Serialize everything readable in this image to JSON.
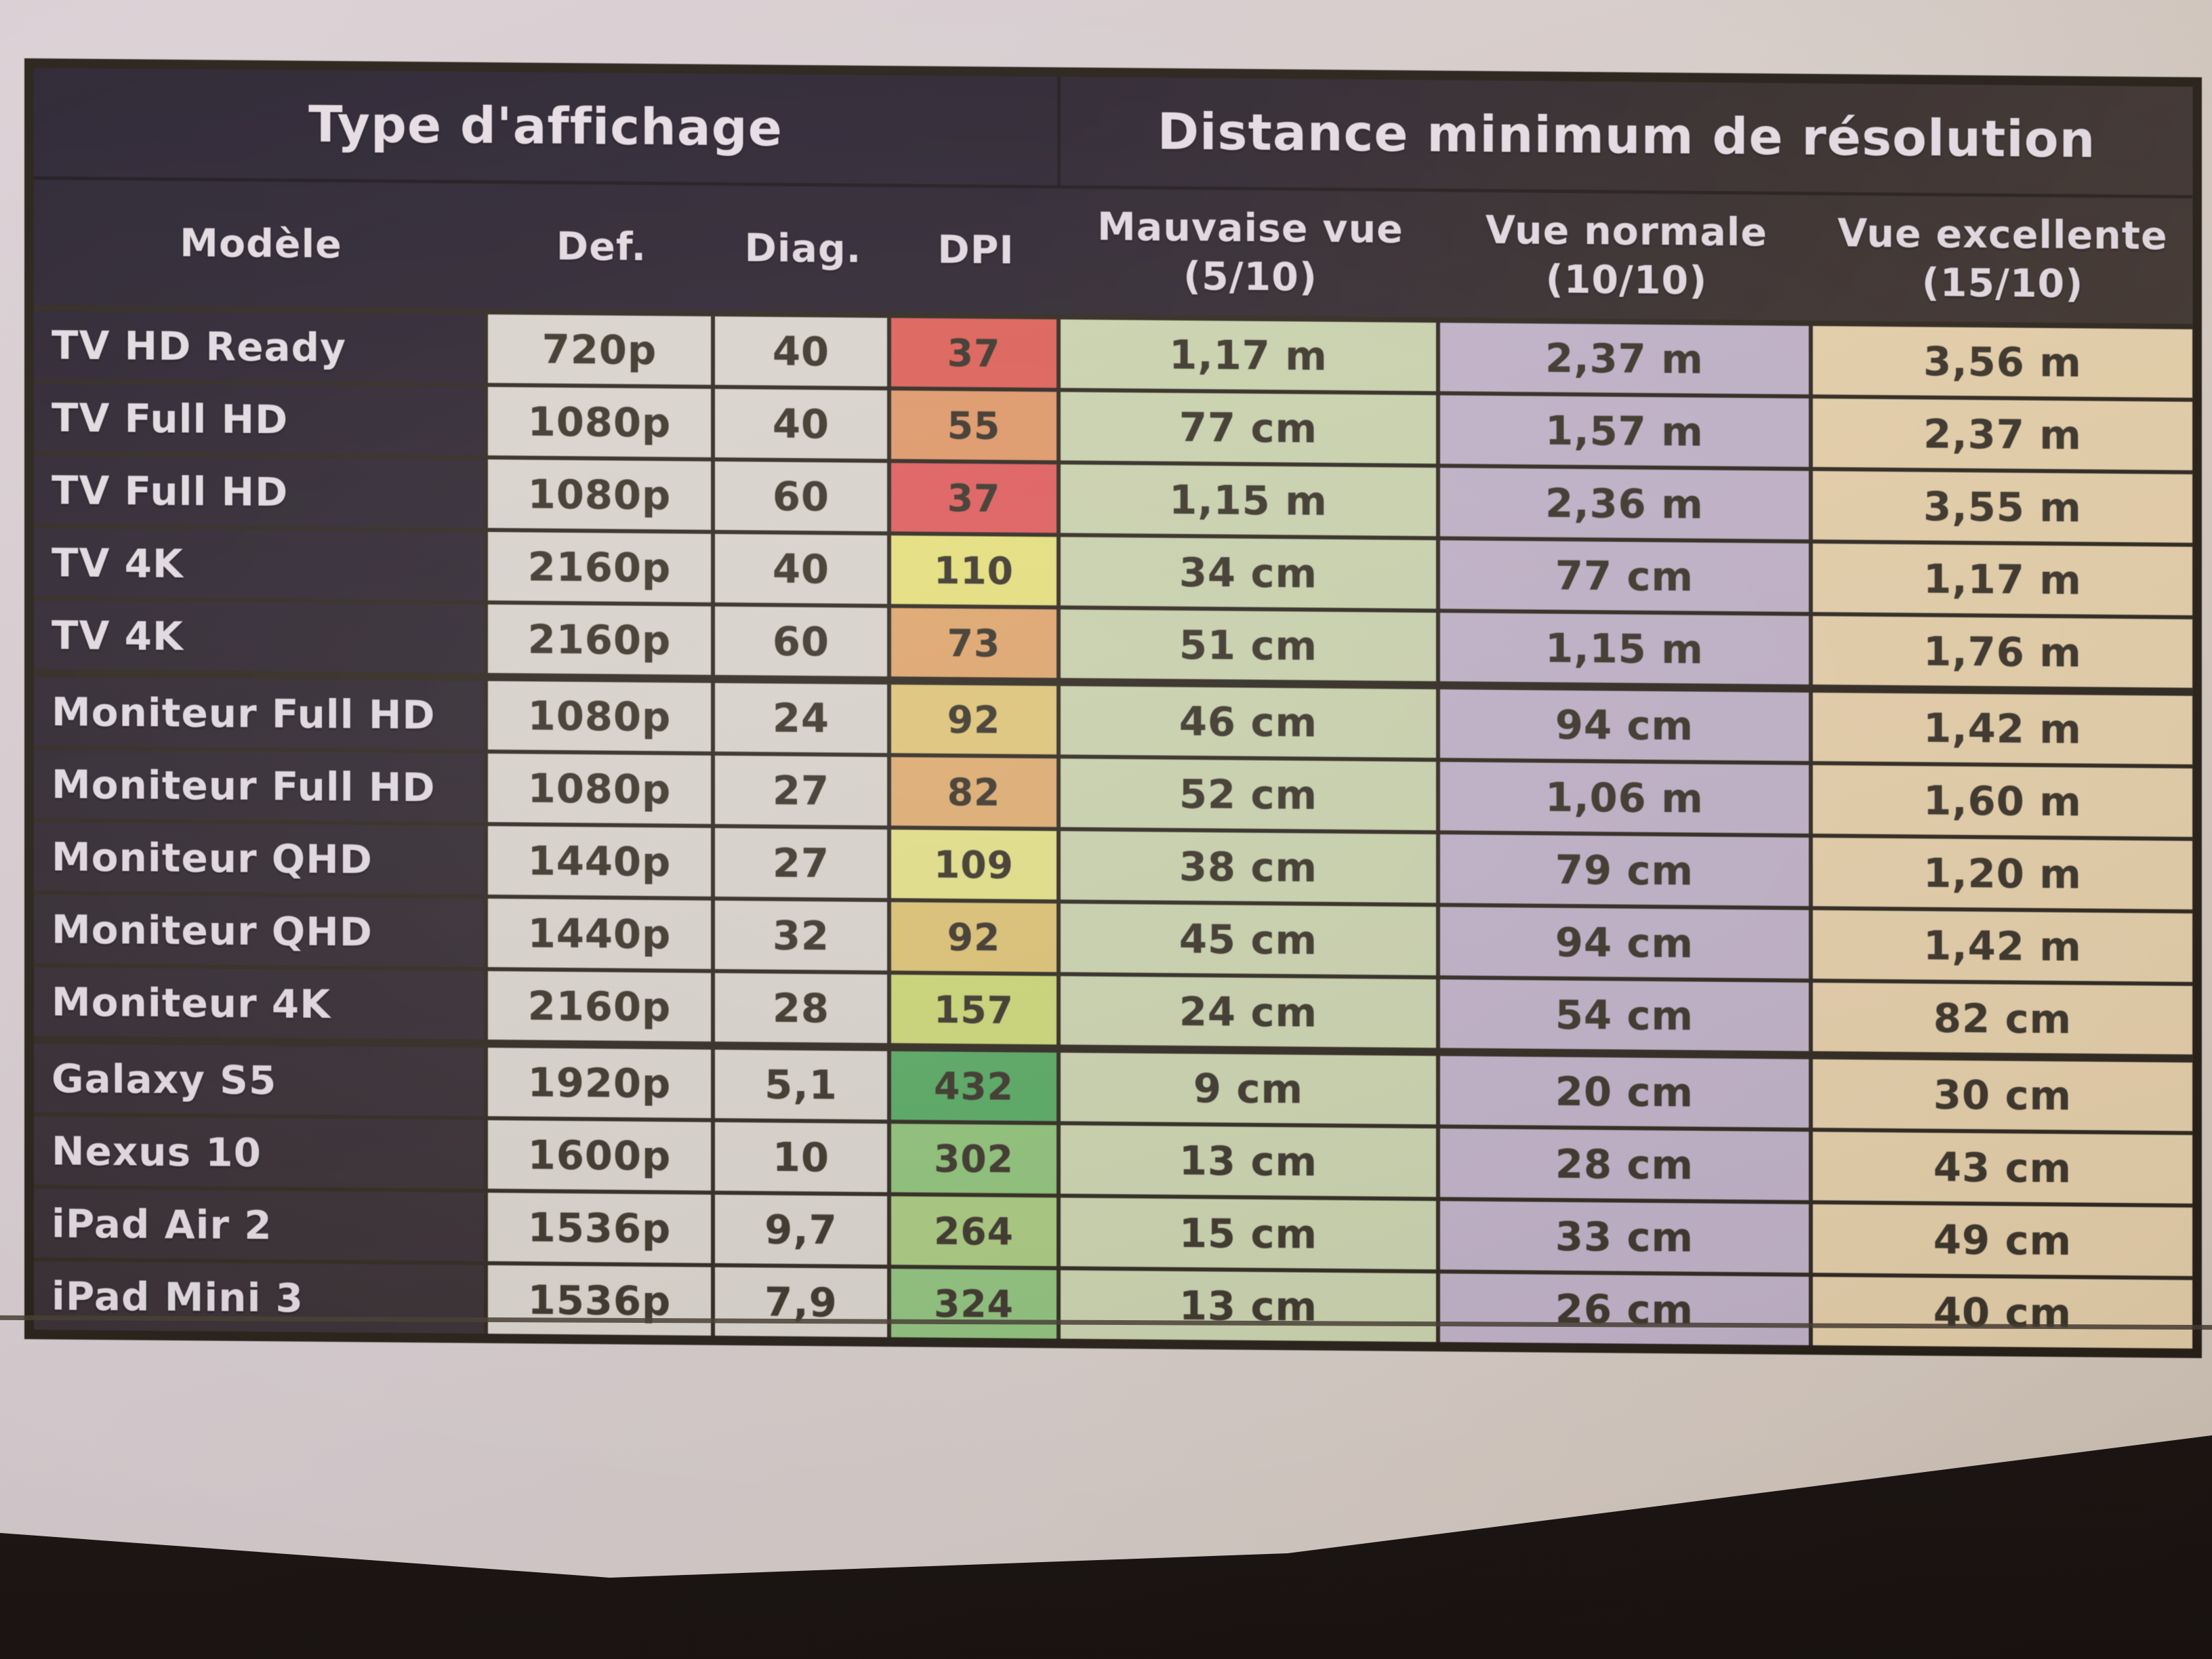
{
  "table": {
    "header_groups": [
      {
        "label": "Type d'affichage"
      },
      {
        "label": "Distance minimum de résolution"
      }
    ],
    "columns": [
      {
        "label": "Modèle",
        "sub": ""
      },
      {
        "label": "Def.",
        "sub": ""
      },
      {
        "label": "Diag.",
        "sub": ""
      },
      {
        "label": "DPI",
        "sub": ""
      },
      {
        "label": "Mauvaise vue",
        "sub": "(5/10)"
      },
      {
        "label": "Vue normale",
        "sub": "(10/10)"
      },
      {
        "label": "Vue excellente",
        "sub": "(15/10)"
      }
    ],
    "group_breaks": [
      4,
      9
    ],
    "rows": [
      {
        "model": "TV HD Ready",
        "def": "720p",
        "diag": "40",
        "dpi": "37",
        "dpi_color": "#e0615a",
        "bad": "1,17 m",
        "normal": "2,37 m",
        "excellent": "3,56 m"
      },
      {
        "model": "TV Full HD",
        "def": "1080p",
        "diag": "40",
        "dpi": "55",
        "dpi_color": "#e29a6a",
        "bad": "77 cm",
        "normal": "1,57 m",
        "excellent": "2,37 m"
      },
      {
        "model": "TV Full HD",
        "def": "1080p",
        "diag": "60",
        "dpi": "37",
        "dpi_color": "#e25e5e",
        "bad": "1,15 m",
        "normal": "2,36 m",
        "excellent": "3,55 m"
      },
      {
        "model": "TV 4K",
        "def": "2160p",
        "diag": "40",
        "dpi": "110",
        "dpi_color": "#e9e47f",
        "bad": "34 cm",
        "normal": "77 cm",
        "excellent": "1,17 m"
      },
      {
        "model": "TV 4K",
        "def": "2160p",
        "diag": "60",
        "dpi": "73",
        "dpi_color": "#e3a86e",
        "bad": "51 cm",
        "normal": "1,15 m",
        "excellent": "1,76 m"
      },
      {
        "model": "Moniteur Full HD",
        "def": "1080p",
        "diag": "24",
        "dpi": "92",
        "dpi_color": "#e3c97a",
        "bad": "46 cm",
        "normal": "94 cm",
        "excellent": "1,42 m"
      },
      {
        "model": "Moniteur Full HD",
        "def": "1080p",
        "diag": "27",
        "dpi": "82",
        "dpi_color": "#e3af72",
        "bad": "52 cm",
        "normal": "1,06 m",
        "excellent": "1,60 m"
      },
      {
        "model": "Moniteur QHD",
        "def": "1440p",
        "diag": "27",
        "dpi": "109",
        "dpi_color": "#e6e388",
        "bad": "38 cm",
        "normal": "79 cm",
        "excellent": "1,20 m"
      },
      {
        "model": "Moniteur QHD",
        "def": "1440p",
        "diag": "32",
        "dpi": "92",
        "dpi_color": "#e0c475",
        "bad": "45 cm",
        "normal": "94 cm",
        "excellent": "1,42 m"
      },
      {
        "model": "Moniteur 4K",
        "def": "2160p",
        "diag": "28",
        "dpi": "157",
        "dpi_color": "#cdd977",
        "bad": "24 cm",
        "normal": "54 cm",
        "excellent": "82 cm"
      },
      {
        "model": "Galaxy S5",
        "def": "1920p",
        "diag": "5,1",
        "dpi": "432",
        "dpi_color": "#57ab63",
        "bad": "9 cm",
        "normal": "20 cm",
        "excellent": "30 cm"
      },
      {
        "model": "Nexus 10",
        "def": "1600p",
        "diag": "10",
        "dpi": "302",
        "dpi_color": "#90c47a",
        "bad": "13 cm",
        "normal": "28 cm",
        "excellent": "43 cm"
      },
      {
        "model": "iPad Air 2",
        "def": "1536p",
        "diag": "9,7",
        "dpi": "264",
        "dpi_color": "#aacc80",
        "bad": "15 cm",
        "normal": "33 cm",
        "excellent": "49 cm"
      },
      {
        "model": "iPad Mini 3",
        "def": "1536p",
        "diag": "7,9",
        "dpi": "324",
        "dpi_color": "#90c47f",
        "bad": "13 cm",
        "normal": "26 cm",
        "excellent": "40 cm"
      }
    ]
  },
  "colors": {
    "paper": "#d9cfd0",
    "desk": "#1d1612",
    "grid_line": "#2e2820",
    "header_navy_left": "#2b2533",
    "header_brown_right": "#4b3f35",
    "col_def_diag_bg": "#dbd6cf",
    "col_bad_view_bg": "#ccd5b0",
    "col_normal_view_bg": "#c2b3ca",
    "col_excellent_view_bg": "#e7d1ac",
    "model_text": "#e4dde4",
    "data_text": "#3b352b"
  }
}
